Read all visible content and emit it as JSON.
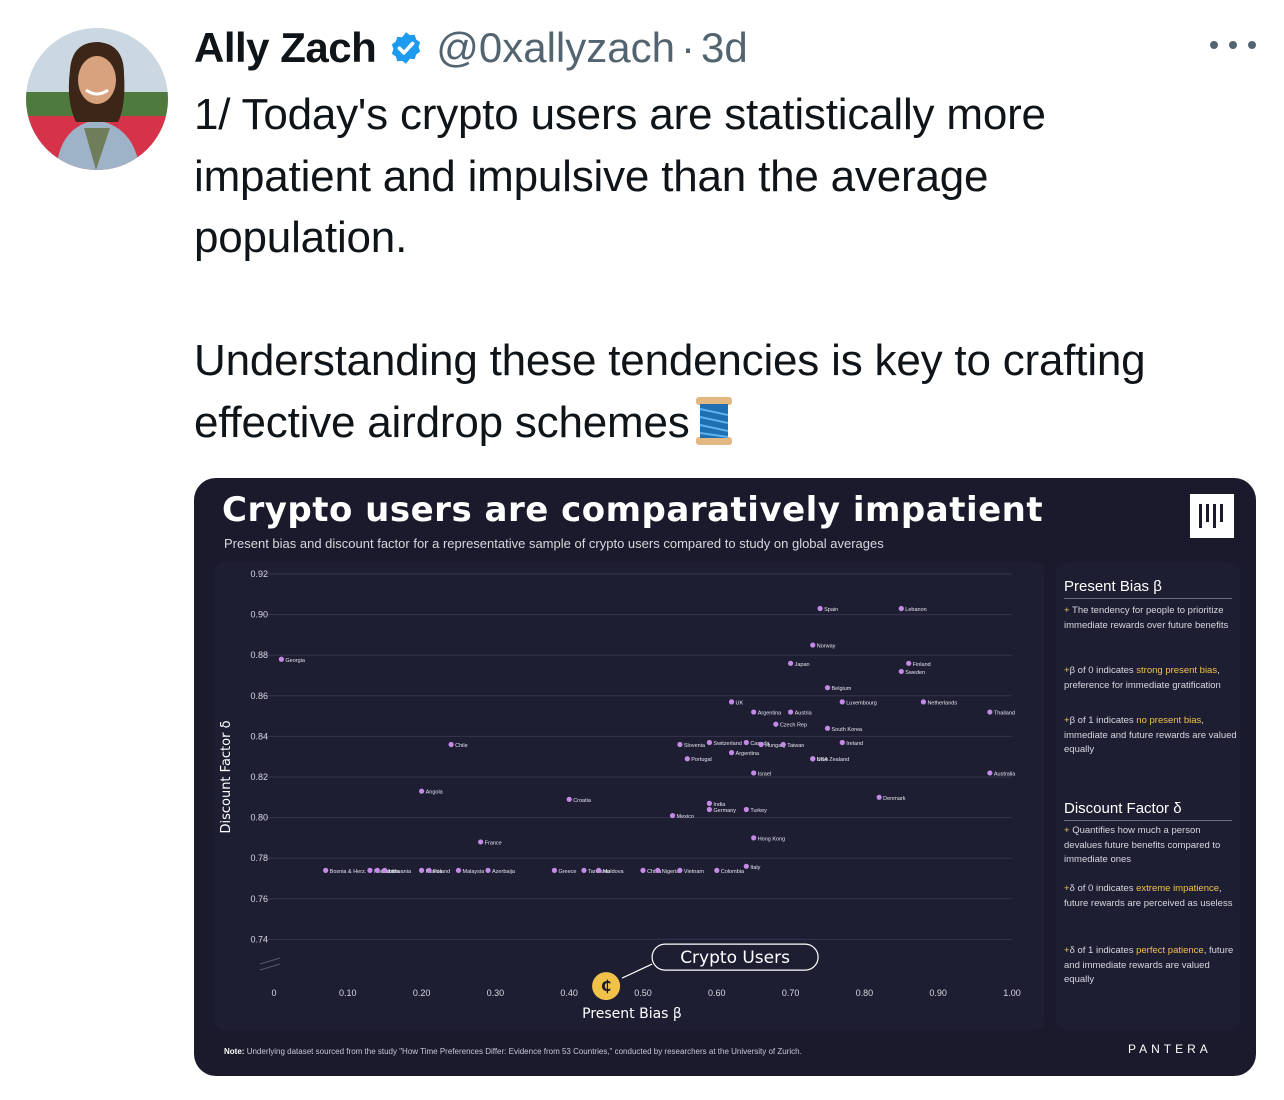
{
  "tweet": {
    "display_name": "Ally Zach",
    "handle": "@0xallyzach",
    "separator": "·",
    "time": "3d",
    "lines": [
      "1/ Today's crypto users are statistically more",
      "impatient and impulsive than the average",
      "population."
    ],
    "lines2": [
      "Understanding these tendencies is key to crafting",
      "effective airdrop schemes"
    ],
    "icons": {
      "verified": "verified-badge-icon",
      "more": "more-options-icon",
      "emoji": "spool-of-thread-emoji"
    },
    "colors": {
      "verified": "#1d9bf0",
      "text": "#0f1419",
      "muted": "#536471"
    }
  },
  "card": {
    "title": "Crypto users are comparatively impatient",
    "subtitle": "Present bias and discount factor for a representative sample of crypto users compared to study on global averages",
    "note_label": "Note:",
    "note": "Underlying dataset sourced from the study \"How Time Preferences Differ: Evidence from 53 Countries,\" conducted by researchers at the University of Zurich.",
    "brand": "PANTERA",
    "colors": {
      "background": "#1a1a2c",
      "panel": "#1e1e33",
      "point": "#c58ae6",
      "highlight": "#f0c24a"
    },
    "sidebar": {
      "present_bias": {
        "heading": "Present Bias β",
        "items": [
          {
            "pre": "The tendency for people to prioritize immediate rewards over future benefits",
            "hl": "",
            "post": ""
          },
          {
            "pre": "β of 0 indicates ",
            "hl": "strong present bias",
            "post": ", preference for immediate gratification"
          },
          {
            "pre": "β of 1 indicates ",
            "hl": "no present bias",
            "post": ", immediate and future rewards are valued equally"
          }
        ]
      },
      "discount_factor": {
        "heading": "Discount Factor δ",
        "items": [
          {
            "pre": "Quantifies how much a person devalues future benefits compared to immediate ones",
            "hl": "",
            "post": ""
          },
          {
            "pre": "δ of 0 indicates ",
            "hl": "extreme impatience",
            "post": ", future rewards are perceived as useless"
          },
          {
            "pre": "δ of 1 indicates ",
            "hl": "perfect patience",
            "post": ", future and immediate rewards are valued equally"
          }
        ]
      }
    }
  },
  "chart_data": {
    "type": "scatter",
    "xlabel": "Present Bias β",
    "ylabel": "Discount Factor δ",
    "xlim": [
      0,
      1.0
    ],
    "ylim": [
      0.72,
      0.92
    ],
    "x_ticks": [
      "0",
      "0.10",
      "0.20",
      "0.30",
      "0.40",
      "0.50",
      "0.60",
      "0.70",
      "0.80",
      "0.90",
      "1.00"
    ],
    "y_ticks": [
      "0.92",
      "0.90",
      "0.88",
      "0.86",
      "0.84",
      "0.82",
      "0.80",
      "0.78",
      "0.76",
      "0.74"
    ],
    "grid": true,
    "points": [
      {
        "label": "Georgia",
        "x": 0.01,
        "y": 0.878
      },
      {
        "label": "Chile",
        "x": 0.24,
        "y": 0.836
      },
      {
        "label": "Angola",
        "x": 0.2,
        "y": 0.813
      },
      {
        "label": "Croatia",
        "x": 0.4,
        "y": 0.809
      },
      {
        "label": "France",
        "x": 0.28,
        "y": 0.788
      },
      {
        "label": "Bosnia & Herz.",
        "x": 0.07,
        "y": 0.774
      },
      {
        "label": "Romania",
        "x": 0.13,
        "y": 0.774
      },
      {
        "label": "Estonia",
        "x": 0.14,
        "y": 0.774
      },
      {
        "label": "Lithuania",
        "x": 0.15,
        "y": 0.774
      },
      {
        "label": "Russia",
        "x": 0.2,
        "y": 0.774
      },
      {
        "label": "Poland",
        "x": 0.21,
        "y": 0.774
      },
      {
        "label": "Malaysia",
        "x": 0.25,
        "y": 0.774
      },
      {
        "label": "Azerbaija",
        "x": 0.29,
        "y": 0.774
      },
      {
        "label": "Greece",
        "x": 0.38,
        "y": 0.774
      },
      {
        "label": "Tanzania",
        "x": 0.42,
        "y": 0.774
      },
      {
        "label": "Moldova",
        "x": 0.44,
        "y": 0.774
      },
      {
        "label": "China",
        "x": 0.5,
        "y": 0.774
      },
      {
        "label": "Nigeria",
        "x": 0.52,
        "y": 0.774
      },
      {
        "label": "Vietnam",
        "x": 0.55,
        "y": 0.774
      },
      {
        "label": "Colombia",
        "x": 0.6,
        "y": 0.774
      },
      {
        "label": "Italy",
        "x": 0.64,
        "y": 0.776
      },
      {
        "label": "Hong Kong",
        "x": 0.65,
        "y": 0.79
      },
      {
        "label": "Mexico",
        "x": 0.54,
        "y": 0.801
      },
      {
        "label": "Germany",
        "x": 0.59,
        "y": 0.804
      },
      {
        "label": "India",
        "x": 0.59,
        "y": 0.807
      },
      {
        "label": "Turkey",
        "x": 0.64,
        "y": 0.804
      },
      {
        "label": "Israel",
        "x": 0.65,
        "y": 0.822
      },
      {
        "label": "Portugal",
        "x": 0.56,
        "y": 0.829
      },
      {
        "label": "Slovenia",
        "x": 0.55,
        "y": 0.836
      },
      {
        "label": "Switzerland",
        "x": 0.59,
        "y": 0.837
      },
      {
        "label": "Argentina",
        "x": 0.62,
        "y": 0.832
      },
      {
        "label": "Canada",
        "x": 0.64,
        "y": 0.837
      },
      {
        "label": "Hungary",
        "x": 0.66,
        "y": 0.836
      },
      {
        "label": "Taiwan",
        "x": 0.69,
        "y": 0.836
      },
      {
        "label": "USA",
        "x": 0.73,
        "y": 0.829
      },
      {
        "label": "New Zealand",
        "x": 0.73,
        "y": 0.829
      },
      {
        "label": "UK",
        "x": 0.62,
        "y": 0.857
      },
      {
        "label": "Argentina",
        "x": 0.65,
        "y": 0.852
      },
      {
        "label": "Czech Rep",
        "x": 0.68,
        "y": 0.846
      },
      {
        "label": "Austria",
        "x": 0.7,
        "y": 0.852
      },
      {
        "label": "South Korea",
        "x": 0.75,
        "y": 0.844
      },
      {
        "label": "Ireland",
        "x": 0.77,
        "y": 0.837
      },
      {
        "label": "Luxembourg",
        "x": 0.77,
        "y": 0.857
      },
      {
        "label": "Belgium",
        "x": 0.75,
        "y": 0.864
      },
      {
        "label": "Japan",
        "x": 0.7,
        "y": 0.876
      },
      {
        "label": "Norway",
        "x": 0.73,
        "y": 0.885
      },
      {
        "label": "Spain",
        "x": 0.74,
        "y": 0.903
      },
      {
        "label": "Lebanon",
        "x": 0.85,
        "y": 0.903
      },
      {
        "label": "Finland",
        "x": 0.86,
        "y": 0.876
      },
      {
        "label": "Sweden",
        "x": 0.85,
        "y": 0.872
      },
      {
        "label": "Netherlands",
        "x": 0.88,
        "y": 0.857
      },
      {
        "label": "Thailand",
        "x": 0.97,
        "y": 0.852
      },
      {
        "label": "Australia",
        "x": 0.97,
        "y": 0.822
      },
      {
        "label": "Denmark",
        "x": 0.82,
        "y": 0.81
      }
    ],
    "highlight": {
      "label": "Crypto Users",
      "x": 0.45,
      "y": 0.717
    }
  }
}
